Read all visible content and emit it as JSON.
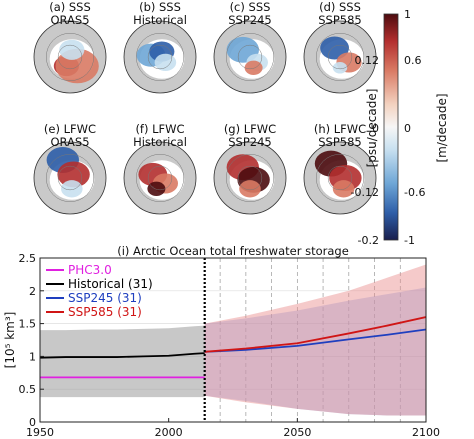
{
  "panels": [
    {
      "title_line1": "(a) SSS",
      "title_line2": "ORAS5"
    },
    {
      "title_line1": "(b) SSS",
      "title_line2": "Historical"
    },
    {
      "title_line1": "(c) SSS",
      "title_line2": "SSP245"
    },
    {
      "title_line1": "(d) SSS",
      "title_line2": "SSP585"
    },
    {
      "title_line1": "(e) LFWC",
      "title_line2": "ORAS5"
    },
    {
      "title_line1": "(f) LFWC",
      "title_line2": "Historical"
    },
    {
      "title_line1": "(g) LFWC",
      "title_line2": "SSP245"
    },
    {
      "title_line1": "(h) LFWC",
      "title_line2": "SSP585"
    }
  ],
  "colorbar": {
    "left_label": "[psu/decade]",
    "right_label": "[m/decade]",
    "left_ticks": [
      "0.12",
      "0",
      "-0.12",
      "-0.2"
    ],
    "right_ticks": [
      "1",
      "0.6",
      "0",
      "-0.6",
      "-1"
    ],
    "colors": [
      "#1a1f4d",
      "#2e5ea8",
      "#6ea6d6",
      "#c8e0f0",
      "#f6f6f6",
      "#f3d2c0",
      "#d97a64",
      "#b32f2f",
      "#4d0c0f"
    ]
  },
  "chart_data": {
    "type": "line",
    "title": "(i) Arctic Ocean total freshwater storage",
    "ylabel": "[10⁵ km³]",
    "xlabel": "",
    "xlim": [
      1950,
      2100
    ],
    "ylim": [
      0,
      2.5
    ],
    "x_ticks": [
      "1950",
      "2000",
      "2050",
      "2100"
    ],
    "y_ticks": [
      "0",
      "0.5",
      "1",
      "1.5",
      "2",
      "2.5"
    ],
    "vline_x": 2014,
    "dashed_decades": [
      2020,
      2030,
      2040,
      2050,
      2060,
      2070,
      2080,
      2090
    ],
    "legend_position": "top-left",
    "series": [
      {
        "name": "PHC3.0",
        "color": "#e020e0",
        "x": [
          1950,
          2014
        ],
        "y": [
          0.68,
          0.68
        ]
      },
      {
        "name": "Historical (31)",
        "color": "#000000",
        "x": [
          1950,
          1960,
          1970,
          1980,
          1990,
          2000,
          2010,
          2014
        ],
        "y": [
          0.98,
          0.99,
          0.99,
          0.99,
          1.0,
          1.01,
          1.04,
          1.05
        ],
        "band_low": [
          0.38,
          0.38,
          0.38,
          0.38,
          0.38,
          0.38,
          0.38,
          0.38
        ],
        "band_high": [
          1.4,
          1.4,
          1.41,
          1.41,
          1.42,
          1.43,
          1.46,
          1.47
        ]
      },
      {
        "name": "SSP245 (31)",
        "color": "#1f3fbf",
        "x": [
          2014,
          2030,
          2050,
          2070,
          2085,
          2100
        ],
        "y": [
          1.07,
          1.1,
          1.16,
          1.26,
          1.33,
          1.41
        ],
        "band_low": [
          0.4,
          0.32,
          0.2,
          0.12,
          0.1,
          0.1
        ],
        "band_high": [
          1.5,
          1.58,
          1.7,
          1.85,
          1.95,
          2.05
        ]
      },
      {
        "name": "SSP585 (31)",
        "color": "#d01515",
        "x": [
          2014,
          2030,
          2050,
          2070,
          2085,
          2100
        ],
        "y": [
          1.07,
          1.12,
          1.2,
          1.35,
          1.47,
          1.6
        ],
        "band_low": [
          0.4,
          0.3,
          0.2,
          0.12,
          0.1,
          0.1
        ],
        "band_high": [
          1.5,
          1.62,
          1.8,
          2.0,
          2.2,
          2.4
        ]
      }
    ]
  }
}
